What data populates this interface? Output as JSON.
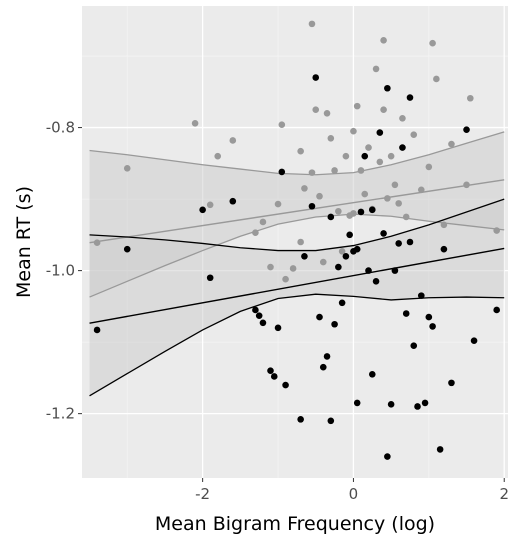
{
  "chart_data": {
    "type": "scatter",
    "title": "",
    "xlabel": "Mean Bigram Frequency (log)",
    "ylabel": "Mean RT (s)",
    "xlim": [
      -3.6,
      2.05
    ],
    "ylim": [
      -1.29,
      -0.63
    ],
    "x_ticks": [
      -2,
      0,
      2
    ],
    "x_tick_labels": [
      "-2",
      "0",
      "2"
    ],
    "y_ticks": [
      -0.8,
      -1.0,
      -1.2
    ],
    "y_tick_labels": [
      "-0.8",
      "-1.0",
      "-1.2"
    ],
    "grid": true,
    "legend": "none",
    "colors": {
      "panel": "#ebebeb",
      "grid_major": "#ffffff",
      "grey_series": "#999999",
      "black_series": "#000000",
      "ribbon": "#d9d9d9"
    },
    "series": [
      {
        "color": "#999999",
        "fit": {
          "intercept": -0.905,
          "slope": 0.016
        },
        "band": {
          "x": [
            -3.5,
            -3.0,
            -2.5,
            -2.0,
            -1.5,
            -1.0,
            -0.5,
            0.0,
            0.5,
            1.0,
            1.5,
            2.0
          ],
          "upper": [
            -0.832,
            -0.838,
            -0.845,
            -0.852,
            -0.858,
            -0.864,
            -0.866,
            -0.863,
            -0.852,
            -0.838,
            -0.822,
            -0.806
          ],
          "lower": [
            -1.037,
            -1.015,
            -0.993,
            -0.972,
            -0.952,
            -0.935,
            -0.925,
            -0.921,
            -0.924,
            -0.931,
            -0.937,
            -0.943
          ]
        },
        "points": [
          [
            -3.4,
            -0.961
          ],
          [
            -3.0,
            -0.857
          ],
          [
            -2.1,
            -0.794
          ],
          [
            -1.9,
            -0.908
          ],
          [
            -1.6,
            -0.818
          ],
          [
            -1.3,
            -0.947
          ],
          [
            -1.2,
            -0.932
          ],
          [
            -1.1,
            -0.995
          ],
          [
            -1.0,
            -0.907
          ],
          [
            -0.95,
            -0.796
          ],
          [
            -0.9,
            -1.012
          ],
          [
            -0.8,
            -0.997
          ],
          [
            -0.7,
            -0.833
          ],
          [
            -0.65,
            -0.885
          ],
          [
            -0.55,
            -0.863
          ],
          [
            -0.5,
            -0.775
          ],
          [
            -0.45,
            -0.896
          ],
          [
            -0.4,
            -0.988
          ],
          [
            -0.35,
            -0.78
          ],
          [
            -0.3,
            -0.815
          ],
          [
            -0.25,
            -0.86
          ],
          [
            -0.2,
            -0.917
          ],
          [
            -0.15,
            -0.973
          ],
          [
            -0.1,
            -0.84
          ],
          [
            -0.05,
            -0.923
          ],
          [
            0.0,
            -0.805
          ],
          [
            0.05,
            -0.77
          ],
          [
            0.1,
            -0.86
          ],
          [
            0.15,
            -0.893
          ],
          [
            0.2,
            -0.828
          ],
          [
            0.25,
            -0.914
          ],
          [
            0.3,
            -0.718
          ],
          [
            0.35,
            -0.848
          ],
          [
            0.4,
            -0.775
          ],
          [
            0.45,
            -0.899
          ],
          [
            0.5,
            -0.84
          ],
          [
            0.55,
            -0.88
          ],
          [
            0.6,
            -0.906
          ],
          [
            0.65,
            -0.787
          ],
          [
            0.7,
            -0.925
          ],
          [
            0.8,
            -0.81
          ],
          [
            0.9,
            -0.887
          ],
          [
            1.0,
            -0.855
          ],
          [
            1.1,
            -0.732
          ],
          [
            1.2,
            -0.936
          ],
          [
            1.3,
            -0.823
          ],
          [
            1.5,
            -0.88
          ],
          [
            1.55,
            -0.759
          ],
          [
            1.9,
            -0.944
          ],
          [
            -0.55,
            -0.655
          ],
          [
            0.4,
            -0.678
          ],
          [
            1.05,
            -0.682
          ],
          [
            -1.8,
            -0.84
          ],
          [
            -0.7,
            -0.96
          ],
          [
            0.0,
            -0.92
          ]
        ]
      },
      {
        "color": "#000000",
        "fit": {
          "intercept": -1.007,
          "slope": 0.019
        },
        "band": {
          "x": [
            -3.5,
            -3.0,
            -2.5,
            -2.0,
            -1.5,
            -1.0,
            -0.5,
            0.0,
            0.5,
            1.0,
            1.5,
            2.0
          ],
          "upper": [
            -0.95,
            -0.953,
            -0.957,
            -0.962,
            -0.968,
            -0.972,
            -0.972,
            -0.965,
            -0.952,
            -0.936,
            -0.918,
            -0.9
          ],
          "lower": [
            -1.175,
            -1.144,
            -1.113,
            -1.083,
            -1.057,
            -1.039,
            -1.033,
            -1.036,
            -1.041,
            -1.038,
            -1.037,
            -1.038
          ]
        },
        "points": [
          [
            -3.4,
            -1.083
          ],
          [
            -3.0,
            -0.97
          ],
          [
            -2.0,
            -0.915
          ],
          [
            -1.9,
            -1.01
          ],
          [
            -1.6,
            -0.903
          ],
          [
            -1.3,
            -1.055
          ],
          [
            -1.25,
            -1.063
          ],
          [
            -1.2,
            -1.073
          ],
          [
            -1.1,
            -1.14
          ],
          [
            -1.05,
            -1.148
          ],
          [
            -1.0,
            -1.08
          ],
          [
            -0.95,
            -0.862
          ],
          [
            -0.9,
            -1.16
          ],
          [
            -0.7,
            -1.208
          ],
          [
            -0.65,
            -0.98
          ],
          [
            -0.55,
            -0.91
          ],
          [
            -0.5,
            -0.73
          ],
          [
            -0.45,
            -1.065
          ],
          [
            -0.4,
            -1.135
          ],
          [
            -0.35,
            -1.12
          ],
          [
            -0.3,
            -0.925
          ],
          [
            -0.25,
            -1.075
          ],
          [
            -0.2,
            -0.995
          ],
          [
            -0.15,
            -1.045
          ],
          [
            -0.1,
            -0.98
          ],
          [
            -0.05,
            -0.95
          ],
          [
            0.0,
            -0.973
          ],
          [
            0.05,
            -0.97
          ],
          [
            0.05,
            -1.185
          ],
          [
            0.1,
            -0.918
          ],
          [
            0.15,
            -0.84
          ],
          [
            0.2,
            -1.0
          ],
          [
            0.25,
            -0.915
          ],
          [
            0.25,
            -1.145
          ],
          [
            0.3,
            -1.015
          ],
          [
            0.35,
            -0.807
          ],
          [
            0.4,
            -0.948
          ],
          [
            0.45,
            -0.745
          ],
          [
            0.45,
            -1.26
          ],
          [
            0.5,
            -1.187
          ],
          [
            0.55,
            -1.0
          ],
          [
            0.6,
            -0.962
          ],
          [
            0.65,
            -0.828
          ],
          [
            0.7,
            -1.06
          ],
          [
            0.75,
            -0.758
          ],
          [
            0.8,
            -1.105
          ],
          [
            0.85,
            -1.19
          ],
          [
            0.9,
            -1.035
          ],
          [
            1.0,
            -1.065
          ],
          [
            1.05,
            -1.078
          ],
          [
            1.15,
            -1.25
          ],
          [
            1.2,
            -0.97
          ],
          [
            1.3,
            -1.157
          ],
          [
            1.5,
            -0.803
          ],
          [
            1.6,
            -1.098
          ],
          [
            1.9,
            -1.055
          ],
          [
            0.95,
            -1.185
          ],
          [
            -0.3,
            -1.21
          ],
          [
            0.75,
            -0.96
          ]
        ]
      }
    ]
  }
}
